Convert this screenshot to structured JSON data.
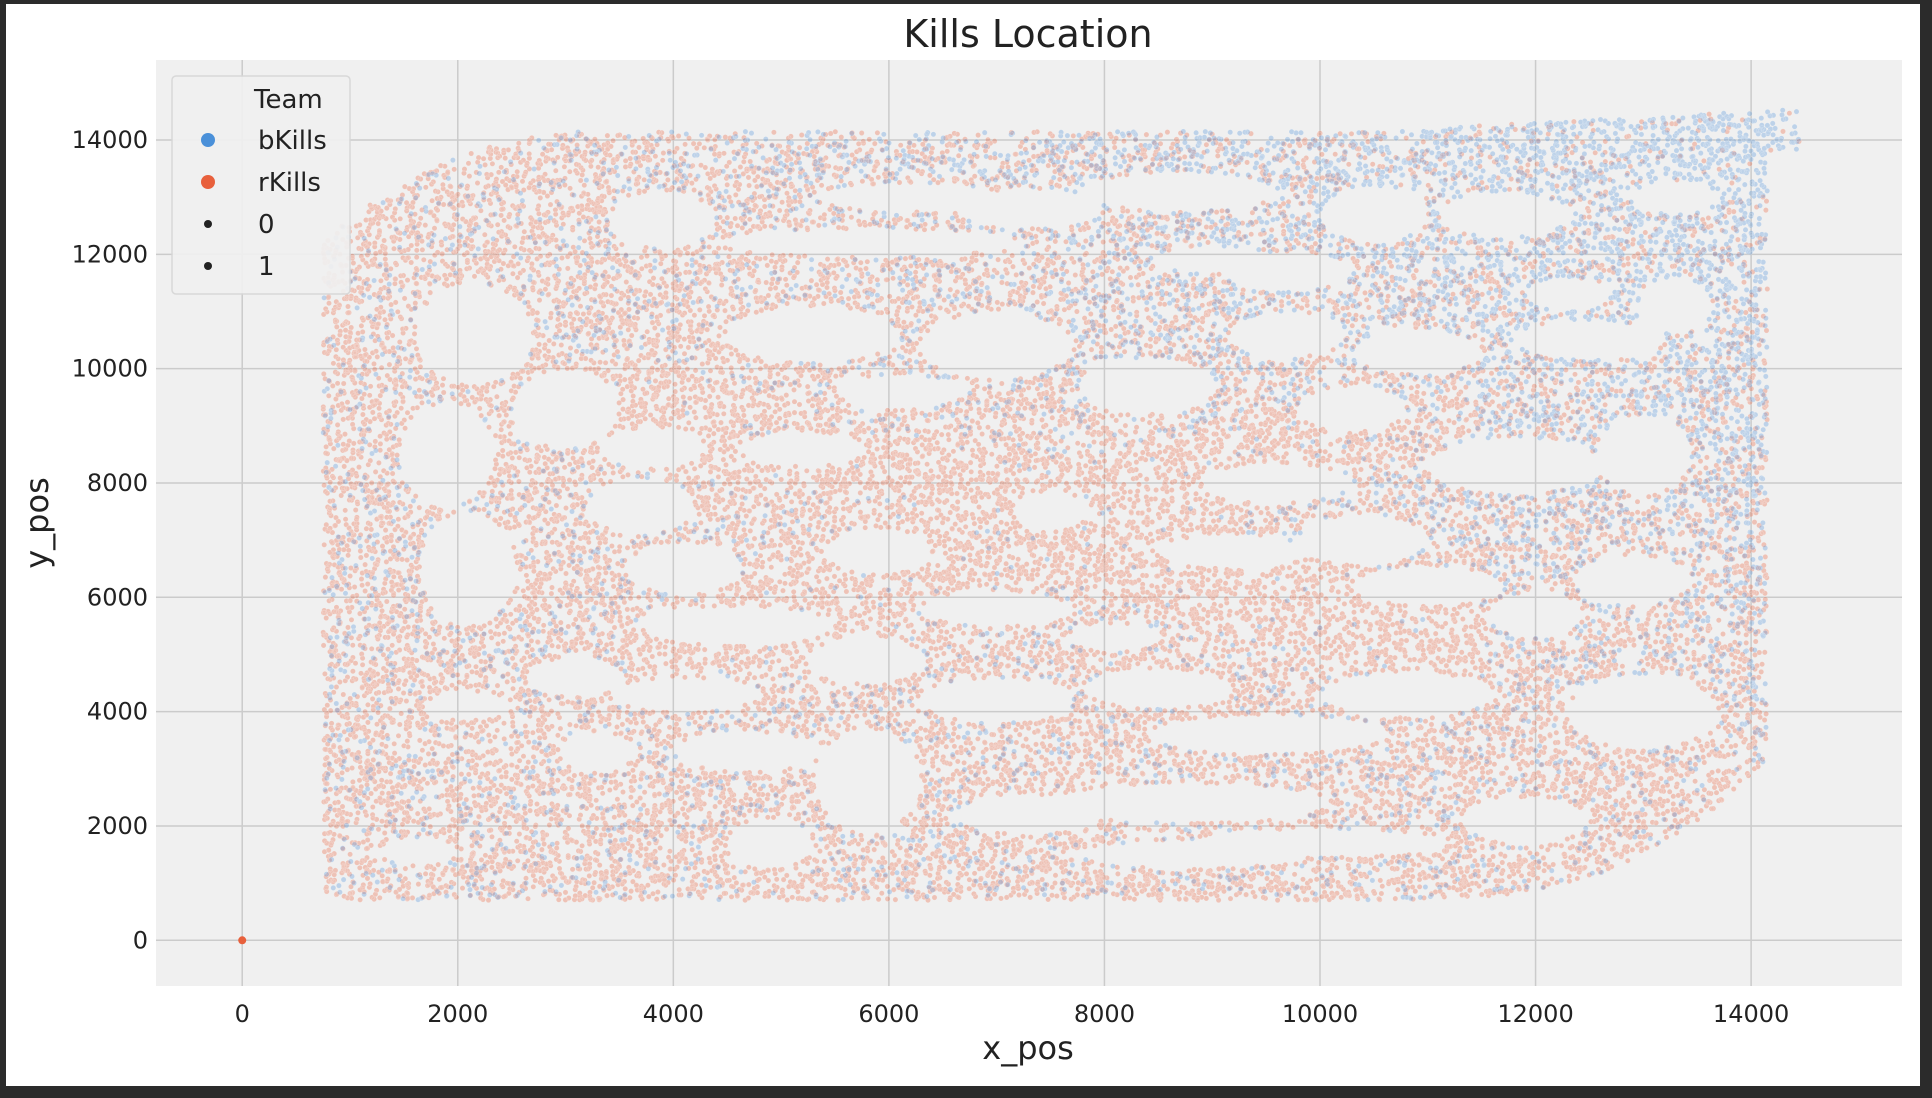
{
  "chart_data": {
    "type": "scatter",
    "title": "Kills Location",
    "xlabel": "x_pos",
    "ylabel": "y_pos",
    "xlim": [
      -800,
      15400
    ],
    "ylim": [
      -800,
      15400
    ],
    "xticks": [
      0,
      2000,
      4000,
      6000,
      8000,
      10000,
      12000,
      14000
    ],
    "yticks": [
      0,
      2000,
      4000,
      6000,
      8000,
      10000,
      12000,
      14000
    ],
    "grid": true,
    "legend": {
      "title": "Team",
      "placement": "top-left",
      "entries": [
        {
          "label": "bKills",
          "kind": "color",
          "color": "#4a90d9"
        },
        {
          "label": "rKills",
          "kind": "color",
          "color": "#e8603c"
        },
        {
          "label": "0",
          "kind": "size",
          "color": "#222222"
        },
        {
          "label": "1",
          "kind": "size",
          "color": "#222222"
        }
      ]
    },
    "series": [
      {
        "name": "bKills",
        "color": "#4a90d9",
        "region": {
          "x": [
            300,
            14500
          ],
          "y": [
            300,
            14600
          ]
        }
      },
      {
        "name": "rKills",
        "color": "#e8603c",
        "region": {
          "x": [
            300,
            14500
          ],
          "y": [
            300,
            14600
          ]
        }
      }
    ],
    "outlier_points": [
      {
        "series": "rKills",
        "x": 0,
        "y": 0
      }
    ]
  }
}
